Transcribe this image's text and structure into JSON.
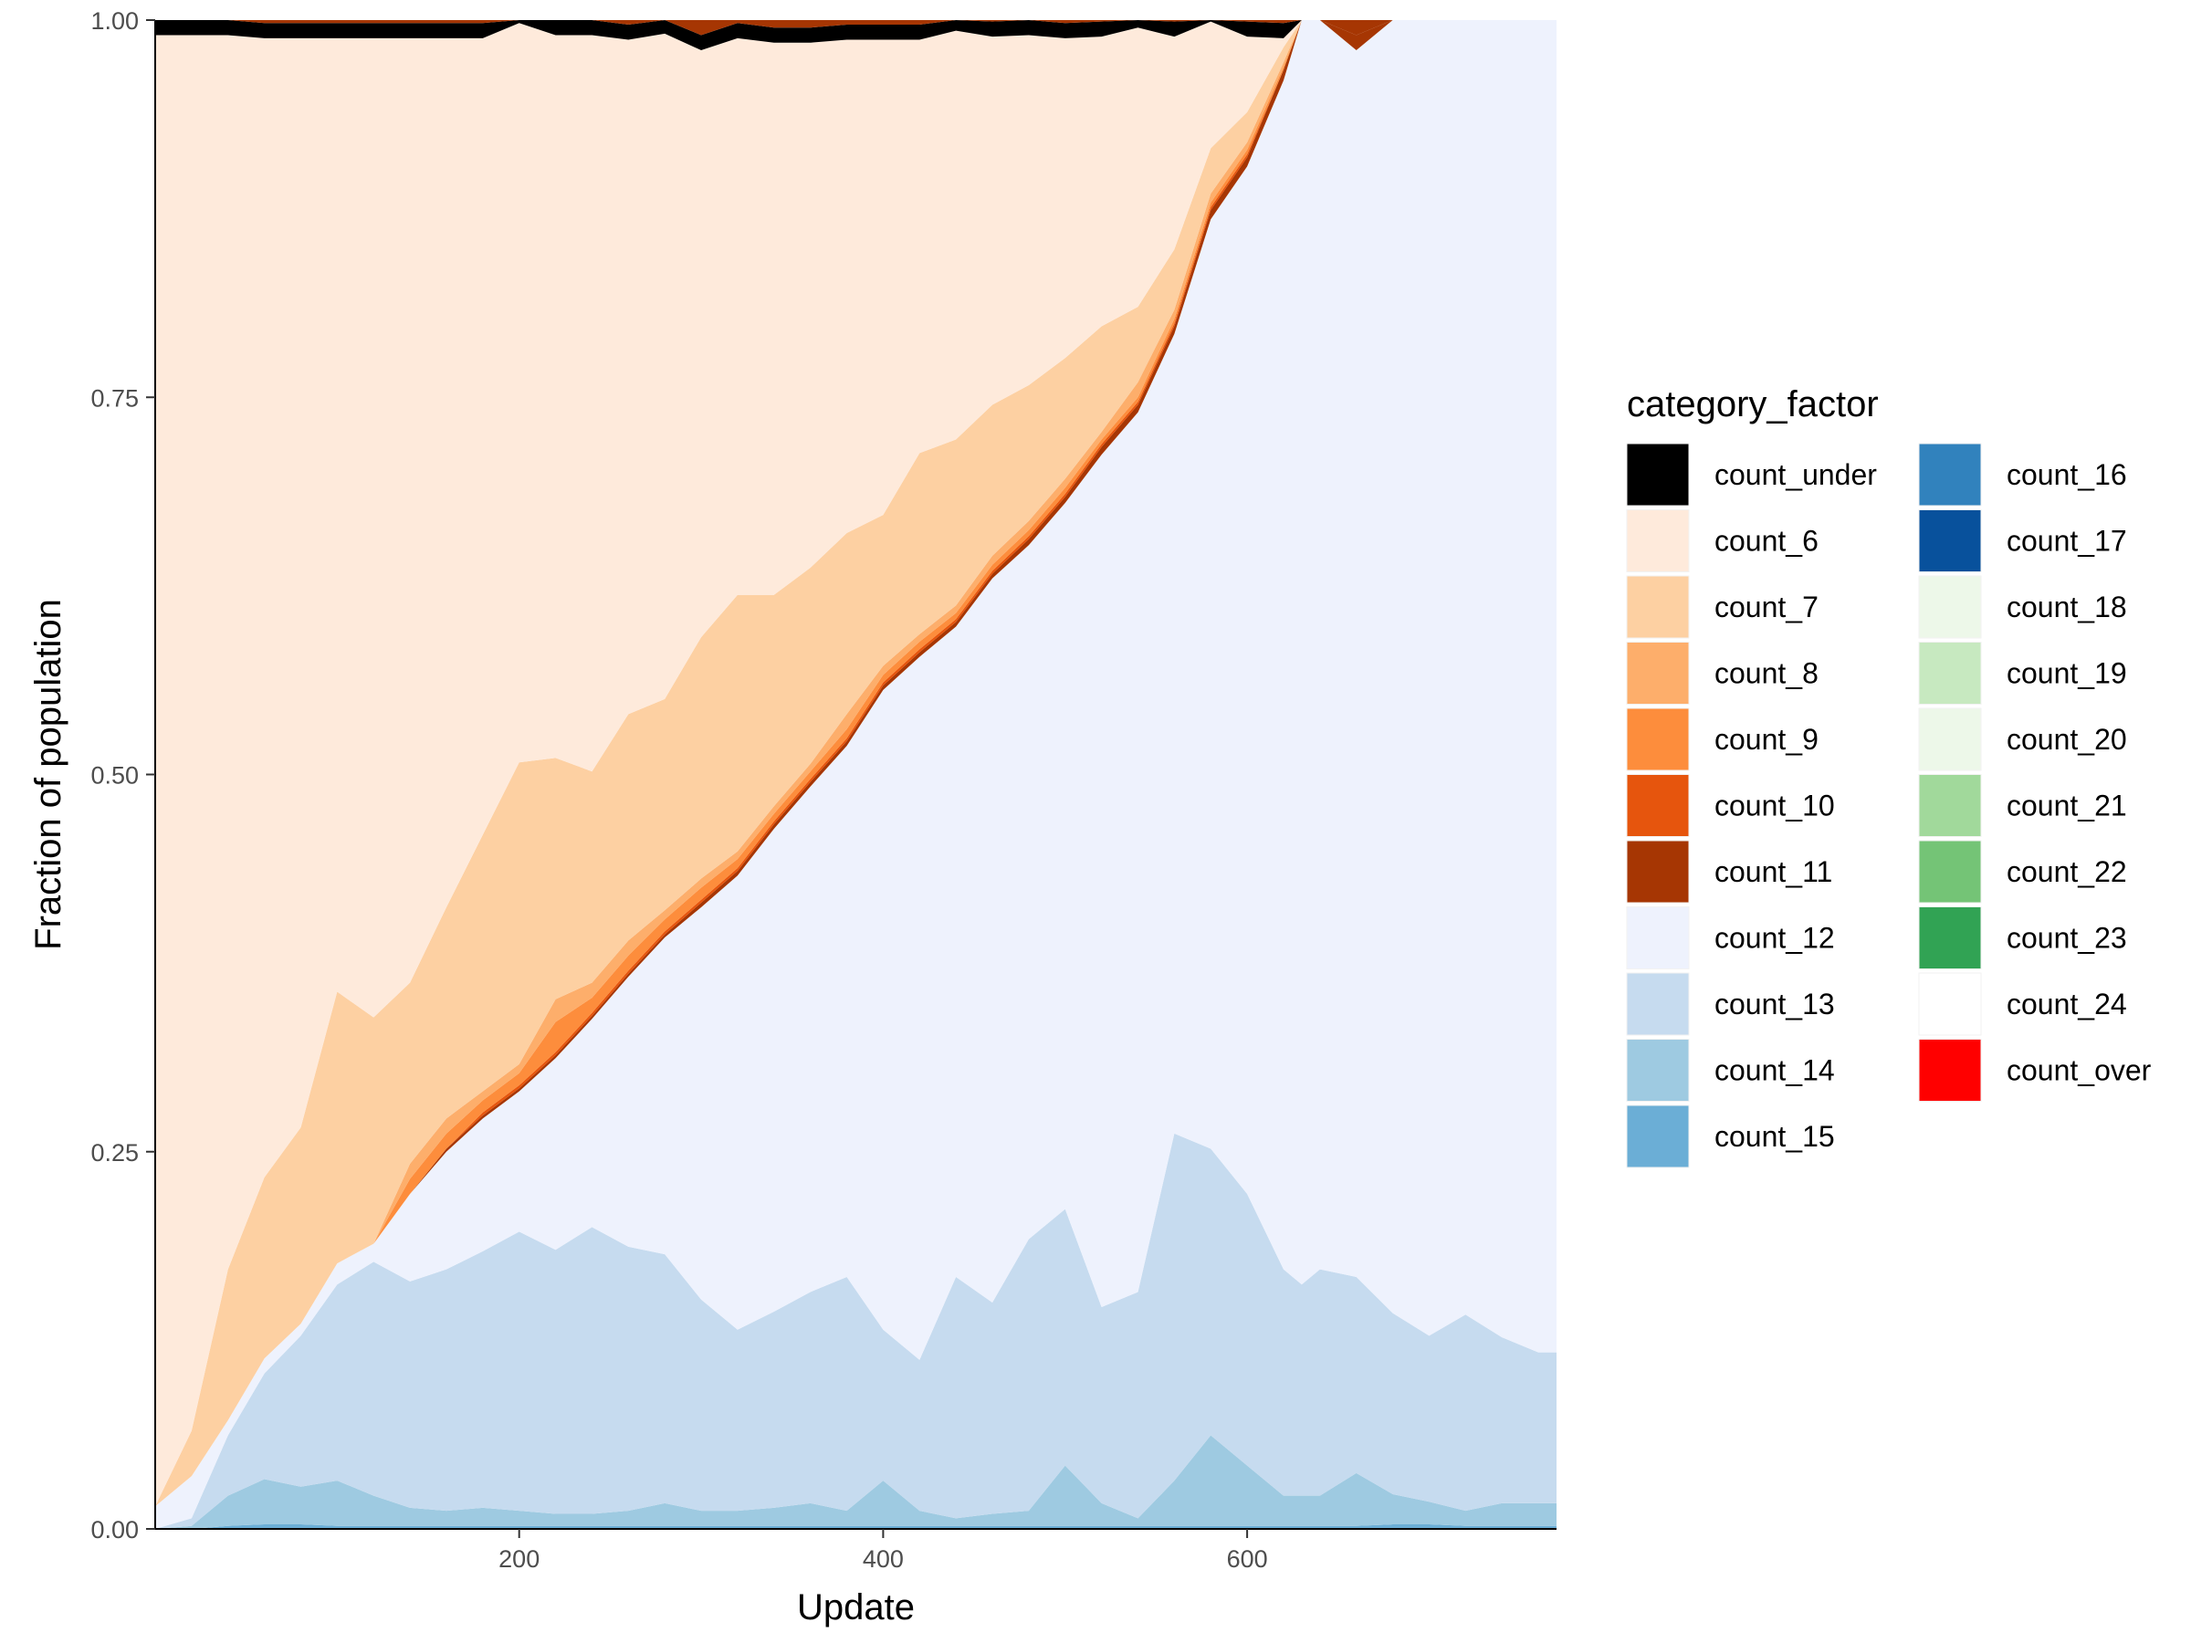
{
  "chart_data": {
    "type": "area",
    "stacked": true,
    "normalized": true,
    "xlabel": "Update",
    "ylabel": "Fraction of population",
    "xlim": [
      0,
      770
    ],
    "ylim": [
      0,
      1
    ],
    "x_ticks": [
      200,
      400,
      600
    ],
    "y_ticks": [
      0.0,
      0.25,
      0.5,
      0.75,
      1.0
    ],
    "y_tick_labels": [
      "0.00",
      "0.25",
      "0.50",
      "0.75",
      "1.00"
    ],
    "grid": false,
    "legend": {
      "title": "category_factor",
      "placement": "right",
      "columns": 2
    },
    "x": [
      0,
      20,
      40,
      60,
      80,
      100,
      120,
      140,
      160,
      180,
      200,
      220,
      240,
      260,
      280,
      300,
      320,
      340,
      360,
      380,
      400,
      420,
      440,
      460,
      480,
      500,
      520,
      540,
      560,
      580,
      600,
      620,
      630,
      640,
      660,
      680,
      700,
      720,
      740,
      760,
      770
    ],
    "series": [
      {
        "name": "count_15",
        "color": "#6baed6",
        "values": [
          0,
          0,
          0.002,
          0.003,
          0.003,
          0.002,
          0.002,
          0.002,
          0.002,
          0.002,
          0.002,
          0.002,
          0.002,
          0.002,
          0.002,
          0.002,
          0.002,
          0.002,
          0.002,
          0.002,
          0.002,
          0.002,
          0.002,
          0.002,
          0.002,
          0.002,
          0.002,
          0.002,
          0.002,
          0.002,
          0.002,
          0.002,
          0.002,
          0.002,
          0.002,
          0.003,
          0.003,
          0.002,
          0.002,
          0.002,
          0.002
        ]
      },
      {
        "name": "count_14",
        "color": "#9ecae1",
        "values": [
          0,
          0.002,
          0.02,
          0.03,
          0.025,
          0.03,
          0.02,
          0.012,
          0.01,
          0.012,
          0.01,
          0.008,
          0.008,
          0.01,
          0.015,
          0.01,
          0.01,
          0.012,
          0.015,
          0.01,
          0.03,
          0.01,
          0.005,
          0.008,
          0.01,
          0.04,
          0.015,
          0.005,
          0.03,
          0.06,
          0.04,
          0.02,
          0.02,
          0.02,
          0.035,
          0.02,
          0.015,
          0.01,
          0.015,
          0.015,
          0.015
        ]
      },
      {
        "name": "count_13",
        "color": "#c6dbef",
        "values": [
          0,
          0.005,
          0.04,
          0.07,
          0.1,
          0.13,
          0.155,
          0.15,
          0.16,
          0.17,
          0.185,
          0.175,
          0.19,
          0.175,
          0.165,
          0.14,
          0.12,
          0.13,
          0.14,
          0.155,
          0.1,
          0.1,
          0.16,
          0.14,
          0.18,
          0.17,
          0.13,
          0.15,
          0.23,
          0.19,
          0.18,
          0.15,
          0.14,
          0.15,
          0.13,
          0.12,
          0.11,
          0.13,
          0.11,
          0.1,
          0.1
        ]
      },
      {
        "name": "count_12",
        "color": "#eef2fd",
        "values": [
          0.015,
          0.028,
          0.01,
          0.01,
          0.008,
          0.014,
          0.012,
          0.058,
          0.078,
          0.088,
          0.093,
          0.127,
          0.138,
          0.179,
          0.21,
          0.26,
          0.301,
          0.32,
          0.335,
          0.352,
          0.424,
          0.466,
          0.431,
          0.48,
          0.46,
          0.468,
          0.565,
          0.583,
          0.53,
          0.616,
          0.681,
          0.788,
          0.838,
          0.828,
          0.813,
          0.857,
          0.872,
          0.858,
          0.873,
          0.883,
          0.883
        ]
      },
      {
        "name": "count_11",
        "color": "#a63603",
        "values": [
          0,
          0,
          0,
          0,
          0,
          0,
          0,
          0,
          0.002,
          0.002,
          0.002,
          0.002,
          0.002,
          0.002,
          0.002,
          0.003,
          0.003,
          0.003,
          0.003,
          0.003,
          0.003,
          0.003,
          0.003,
          0.003,
          0.004,
          0.004,
          0.005,
          0.005,
          0.005,
          0.006,
          0.006,
          0.007,
          0,
          0.01,
          0.01,
          0.01,
          0.01,
          0.01,
          0.01,
          0.01,
          0.01
        ]
      },
      {
        "name": "count_10",
        "color": "#e6550d",
        "values": [
          0,
          0,
          0,
          0,
          0,
          0,
          0,
          0,
          0,
          0.002,
          0.002,
          0.002,
          0.002,
          0.002,
          0.002,
          0.002,
          0.002,
          0.002,
          0.002,
          0.002,
          0.002,
          0.002,
          0.002,
          0.002,
          0.002,
          0.002,
          0.002,
          0.002,
          0.002,
          0.002,
          0.002,
          0,
          0,
          0,
          0,
          0,
          0,
          0,
          0,
          0,
          0
        ]
      },
      {
        "name": "count_9",
        "color": "#fd8d3c",
        "values": [
          0,
          0,
          0,
          0,
          0,
          0,
          0,
          0.01,
          0.01,
          0.008,
          0.008,
          0.02,
          0.01,
          0.01,
          0.008,
          0.008,
          0.006,
          0.005,
          0.005,
          0.006,
          0.005,
          0.005,
          0.004,
          0.004,
          0.004,
          0.004,
          0.003,
          0.003,
          0.003,
          0.003,
          0.003,
          0.002,
          0,
          0,
          0,
          0,
          0,
          0,
          0,
          0,
          0
        ]
      },
      {
        "name": "count_8",
        "color": "#fdae6b",
        "values": [
          0,
          0,
          0,
          0,
          0,
          0,
          0,
          0.01,
          0.01,
          0.006,
          0.006,
          0.015,
          0.01,
          0.01,
          0.006,
          0.006,
          0.005,
          0.005,
          0.005,
          0.01,
          0.006,
          0.005,
          0.005,
          0.006,
          0.006,
          0.006,
          0.005,
          0.01,
          0.006,
          0.006,
          0.005,
          0.003,
          0,
          0,
          0,
          0,
          0,
          0,
          0,
          0,
          0
        ]
      },
      {
        "name": "count_7",
        "color": "#fdd0a2",
        "values": [
          0,
          0.03,
          0.1,
          0.12,
          0.13,
          0.18,
          0.15,
          0.12,
          0.14,
          0.17,
          0.2,
          0.16,
          0.14,
          0.15,
          0.14,
          0.16,
          0.17,
          0.14,
          0.13,
          0.12,
          0.1,
          0.12,
          0.11,
          0.1,
          0.09,
          0.08,
          0.07,
          0.05,
          0.04,
          0.03,
          0.02,
          0.01,
          0,
          0,
          0,
          0,
          0,
          0,
          0,
          0,
          0
        ]
      },
      {
        "name": "count_6",
        "color": "#feeadb",
        "values": [
          0.975,
          0.925,
          0.818,
          0.755,
          0.722,
          0.632,
          0.649,
          0.626,
          0.576,
          0.528,
          0.49,
          0.479,
          0.488,
          0.447,
          0.441,
          0.389,
          0.369,
          0.366,
          0.348,
          0.327,
          0.315,
          0.274,
          0.271,
          0.244,
          0.232,
          0.212,
          0.192,
          0.185,
          0.141,
          0.084,
          0.05,
          0.006,
          0,
          0,
          0,
          0,
          0,
          0,
          0,
          0,
          0
        ]
      },
      {
        "name": "count_under",
        "color": "#000000",
        "values": [
          0.01,
          0.01,
          0.01,
          0.01,
          0.01,
          0.01,
          0.01,
          0.01,
          0.01,
          0.01,
          0.01,
          0.01,
          0.01,
          0.01,
          0.01,
          0.01,
          0.01,
          0.01,
          0.01,
          0.01,
          0.01,
          0.01,
          0.01,
          0.01,
          0.01,
          0.01,
          0.01,
          0.01,
          0.01,
          0.01,
          0.01,
          0.01,
          0,
          0,
          0,
          0,
          0,
          0,
          0,
          0,
          0
        ]
      }
    ],
    "legend_entries": [
      {
        "name": "count_under",
        "color": "#000000"
      },
      {
        "name": "count_6",
        "color": "#feeadb"
      },
      {
        "name": "count_7",
        "color": "#fdd0a2"
      },
      {
        "name": "count_8",
        "color": "#fdae6b"
      },
      {
        "name": "count_9",
        "color": "#fd8d3c"
      },
      {
        "name": "count_10",
        "color": "#e6550d"
      },
      {
        "name": "count_11",
        "color": "#a63603"
      },
      {
        "name": "count_12",
        "color": "#eef2fd"
      },
      {
        "name": "count_13",
        "color": "#c6dbef"
      },
      {
        "name": "count_14",
        "color": "#9ecae1"
      },
      {
        "name": "count_15",
        "color": "#6baed6"
      },
      {
        "name": "count_16",
        "color": "#3182bd"
      },
      {
        "name": "count_17",
        "color": "#08519c"
      },
      {
        "name": "count_18",
        "color": "#edf8e9"
      },
      {
        "name": "count_19",
        "color": "#c7e9c0"
      },
      {
        "name": "count_20",
        "color": "#edf8e9"
      },
      {
        "name": "count_21",
        "color": "#a1d99b"
      },
      {
        "name": "count_22",
        "color": "#74c476"
      },
      {
        "name": "count_23",
        "color": "#31a354"
      },
      {
        "name": "count_24",
        "color": "#ffffff"
      },
      {
        "name": "count_over",
        "color": "#ff0000"
      }
    ]
  }
}
